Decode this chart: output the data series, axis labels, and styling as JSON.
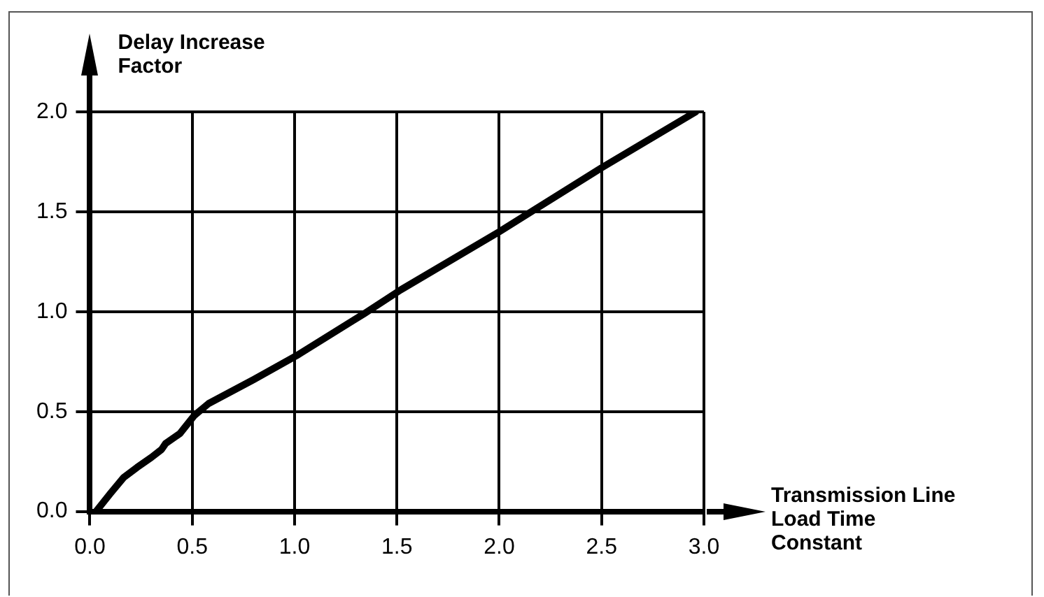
{
  "chart_data": {
    "type": "line",
    "xlabel": "Transmission Line\nLoad Time\nConstant",
    "ylabel": "Delay Increase\nFactor",
    "x": [
      0.03,
      0.1,
      0.165,
      0.23,
      0.3,
      0.35,
      0.37,
      0.44,
      0.51,
      0.58,
      0.8,
      1.01,
      1.34,
      1.52,
      2.0,
      2.5,
      2.96
    ],
    "series": [
      {
        "color": "#000000",
        "values": [
          0,
          0.09,
          0.17,
          0.22,
          0.27,
          0.31,
          0.34,
          0.39,
          0.48,
          0.54,
          0.66,
          0.78,
          0.99,
          1.11,
          1.4,
          1.72,
          2.0
        ]
      }
    ],
    "xlim": [
      0,
      3.0
    ],
    "ylim": [
      0,
      2.0
    ],
    "xticks": [
      {
        "value": 0,
        "label": "0.0"
      },
      0.5,
      {
        "value": 1,
        "label": "1.0"
      },
      1.5,
      {
        "value": 2,
        "label": "2.0"
      },
      2.5,
      {
        "value": 3,
        "label": "3.0"
      }
    ],
    "yticks": [
      {
        "value": 0,
        "label": "0.0"
      },
      0.5,
      {
        "value": 1,
        "label": "1.0"
      },
      1.5,
      {
        "value": 2,
        "label": "2.0"
      }
    ],
    "grid": true,
    "legend": false,
    "marker": "none",
    "line_style": "solid"
  }
}
